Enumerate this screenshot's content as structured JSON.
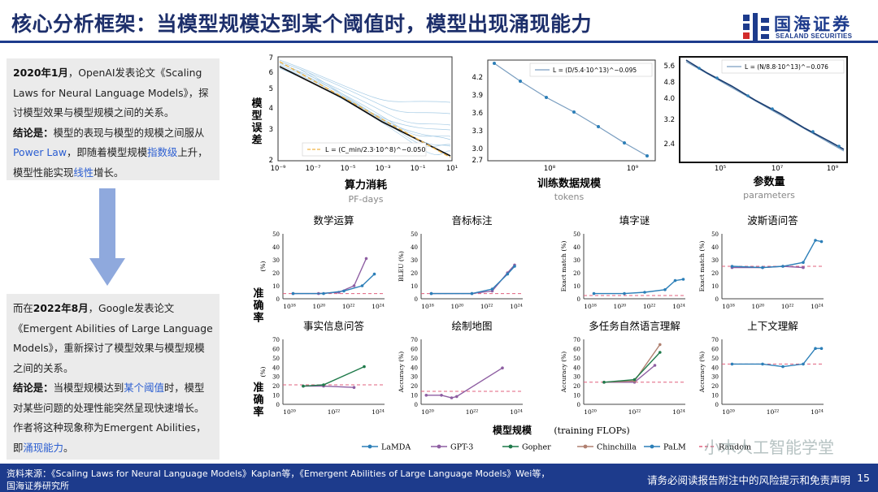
{
  "header": {
    "title": "核心分析框架：当模型规模达到某个阈值时，模型出现涌现能力",
    "logo_cn": "国海证券",
    "logo_en": "SEALAND SECURITIES"
  },
  "box1": {
    "date": "2020年1月",
    "t1": "，OpenAI发表论文《Scaling Laws for Neural Language Models》，探讨模型效果与模型规模之间的关系。",
    "concl_label": "结论是：",
    "t2": "模型的表现与模型的规模之间服从",
    "powerlaw": "Power Law",
    "t3": "，即随着模型规模",
    "exp": "指数级",
    "t4": "上升，模型性能实现",
    "lin": "线性",
    "t5": "增长。"
  },
  "box2": {
    "t0": "而在",
    "date": "2022年8月",
    "t1": "，Google发表论文《Emergent Abilities of Large Language Models》，重新探讨了模型效果与模型规模之间的关系。",
    "concl_label": "结论是：",
    "t2": "当模型规模达到",
    "thr": "某个阈值",
    "t3": "时，模型对某些问题的处理性能突然呈现快速增长。作者将这种现象称为Emergent Abilities，即",
    "emg": "涌现能力",
    "t4": "。"
  },
  "top_plots": [
    {
      "ylabel": "模型误差",
      "xlabel": "算力消耗",
      "xsub": "PF-days",
      "legend": "L = (C_min/2.3·10^8)^−0.050",
      "yticks": [
        "7",
        "6",
        "5",
        "4",
        "3",
        "2"
      ],
      "xticks": [
        "10⁻⁹",
        "10⁻⁷",
        "10⁻⁵",
        "10⁻³",
        "10⁻¹",
        "10¹"
      ]
    },
    {
      "xlabel": "训练数据规模",
      "xsub": "tokens",
      "legend": "L = (D/5.4·10^13)^−0.095",
      "yticks": [
        "4.2",
        "3.9",
        "3.6",
        "3.3",
        "3.0",
        "2.7"
      ],
      "xticks": [
        "10⁸",
        "10⁹"
      ]
    },
    {
      "xlabel": "参数量",
      "xsub": "parameters",
      "legend": "L = (N/8.8·10^13)^−0.076",
      "yticks": [
        "5.6",
        "4.8",
        "4.0",
        "3.2",
        "2.4"
      ],
      "xticks": [
        "10⁵",
        "10⁷",
        "10⁹"
      ]
    }
  ],
  "grid": {
    "ylabel_main": "准确率",
    "xlabel": "模型规模",
    "xlabel_sub": "(training FLOPs)",
    "legend": [
      "LaMDA",
      "GPT-3",
      "Gopher",
      "Chinchilla",
      "PaLM",
      "Random"
    ],
    "panels": [
      {
        "title": "数学运算",
        "ylab": "(%)",
        "yticks": [
          "50",
          "40",
          "30",
          "20",
          "10",
          "0"
        ],
        "xticks": [
          "10¹⁸",
          "10²⁰",
          "10²²",
          "10²⁴"
        ]
      },
      {
        "title": "音标标注",
        "ylab": "BLEU (%)",
        "yticks": [
          "50",
          "40",
          "30",
          "20",
          "10",
          "0"
        ],
        "xticks": [
          "10¹⁸",
          "10²⁰",
          "10²²",
          "10²⁴"
        ]
      },
      {
        "title": "填字谜",
        "ylab": "Exact match (%)",
        "yticks": [
          "50",
          "40",
          "30",
          "20",
          "10",
          "0"
        ],
        "xticks": [
          "10¹⁸",
          "10²⁰",
          "10²²",
          "10²⁴"
        ]
      },
      {
        "title": "波斯语问答",
        "ylab": "Exact match (%)",
        "yticks": [
          "50",
          "40",
          "30",
          "20",
          "10",
          "0"
        ],
        "xticks": [
          "10¹⁸",
          "10²⁰",
          "10²²",
          "10²⁴"
        ]
      },
      {
        "title": "事实信息问答",
        "ylab": "(%)",
        "yticks": [
          "70",
          "60",
          "50",
          "40",
          "30",
          "20",
          "10",
          "0"
        ],
        "xticks": [
          "10²⁰",
          "10²²",
          "10²⁴"
        ]
      },
      {
        "title": "绘制地图",
        "ylab": "Accuracy (%)",
        "yticks": [
          "70",
          "60",
          "50",
          "40",
          "30",
          "20",
          "10",
          "0"
        ],
        "xticks": [
          "10²⁰",
          "10²²",
          "10²⁴"
        ]
      },
      {
        "title": "多任务自然语言理解",
        "ylab": "Accuracy (%)",
        "yticks": [
          "70",
          "60",
          "50",
          "40",
          "30",
          "20",
          "10",
          "0"
        ],
        "xticks": [
          "10²⁰",
          "10²²",
          "10²⁴"
        ]
      },
      {
        "title": "上下文理解",
        "ylab": "Accuracy (%)",
        "yticks": [
          "70",
          "60",
          "50",
          "40",
          "30",
          "20",
          "10",
          "0"
        ],
        "xticks": [
          "10²⁰",
          "10²²",
          "10²⁴"
        ]
      }
    ]
  },
  "watermark": "小木人工智能学堂",
  "footer": {
    "source1": "资料来源：《Scaling Laws for Neural Language Models》Kaplan等，《Emergent Abilities of Large Language Models》Wei等，",
    "source2": "国海证券研究所",
    "disclaimer": "请务必阅读报告附注中的风险提示和免责声明",
    "page": "15"
  },
  "colors": {
    "navy": "#1d3b8c",
    "lamda": "#2c7fb8",
    "gpt3": "#8e5ea2",
    "gopher": "#1f7a4a",
    "chinchilla": "#b08070",
    "random": "#e0607e"
  }
}
